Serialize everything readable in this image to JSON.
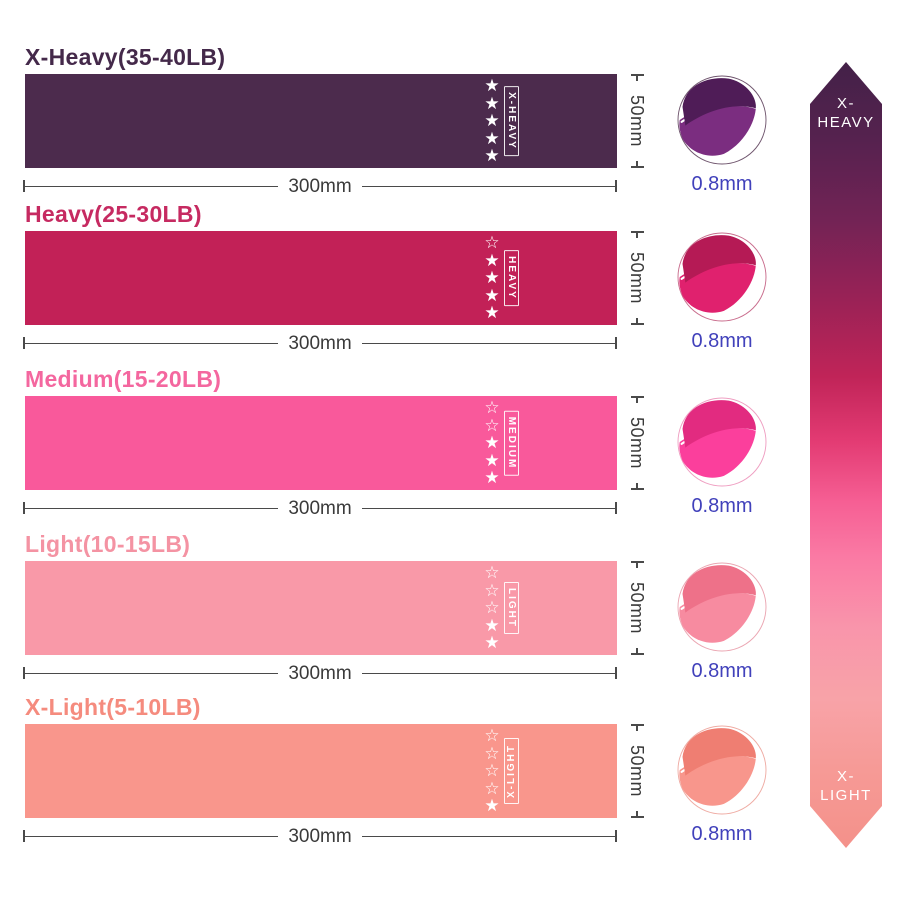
{
  "page_background": "#ffffff",
  "star_glyphs": {
    "filled": "★",
    "empty": "☆"
  },
  "dimension_text_color": "#3a3a3a",
  "thickness_text_color": "#4141bb",
  "bands": [
    {
      "title": "X-Heavy(35-40LB)",
      "label": "X-HEAVY",
      "stars_filled": 5,
      "stars_total": 5,
      "width": "300mm",
      "height": "50mm",
      "thickness": "0.8mm",
      "band_color": "#4c2b4d",
      "title_color": "#44294a",
      "circle_main": "#7b2d80",
      "circle_dark": "#4f1c57",
      "circle_ring": "#70566e",
      "label_reversed": false
    },
    {
      "title": "Heavy(25-30LB)",
      "label": "HEAVY",
      "stars_filled": 4,
      "stars_total": 5,
      "width": "300mm",
      "height": "50mm",
      "thickness": "0.8mm",
      "band_color": "#c22157",
      "title_color": "#c62a61",
      "circle_main": "#e0216e",
      "circle_dark": "#b51a55",
      "circle_ring": "#c96d8d",
      "label_reversed": false
    },
    {
      "title": "Medium(15-20LB)",
      "label": "MEDIUM",
      "stars_filled": 3,
      "stars_total": 5,
      "width": "300mm",
      "height": "50mm",
      "thickness": "0.8mm",
      "band_color": "#f9599b",
      "title_color": "#f4679f",
      "circle_main": "#fb3f9c",
      "circle_dark": "#e22b80",
      "circle_ring": "#ef9fc2",
      "label_reversed": false
    },
    {
      "title": "Light(10-15LB)",
      "label": "LIGHT",
      "stars_filled": 2,
      "stars_total": 5,
      "width": "300mm",
      "height": "50mm",
      "thickness": "0.8mm",
      "band_color": "#f999a8",
      "title_color": "#f493a3",
      "circle_main": "#f78ba0",
      "circle_dark": "#ee7189",
      "circle_ring": "#eba6b2",
      "label_reversed": false
    },
    {
      "title": "X-Light(5-10LB)",
      "label": "X-LIGHT",
      "stars_filled": 1,
      "stars_total": 5,
      "width": "300mm",
      "height": "50mm",
      "thickness": "0.8mm",
      "band_color": "#f9968c",
      "title_color": "#f58b7e",
      "circle_main": "#f8968c",
      "circle_dark": "#ef7e72",
      "circle_ring": "#efaca4",
      "label_reversed": true
    }
  ],
  "scale_arrow": {
    "top_line1": "X-",
    "top_line2": "HEAVY",
    "bottom_line1": "X-",
    "bottom_line2": "LIGHT",
    "gradient_stops": [
      {
        "offset": "0%",
        "color": "#432148"
      },
      {
        "offset": "10%",
        "color": "#56224f"
      },
      {
        "offset": "20%",
        "color": "#722355"
      },
      {
        "offset": "30%",
        "color": "#992256"
      },
      {
        "offset": "40%",
        "color": "#c02458"
      },
      {
        "offset": "48%",
        "color": "#e23a72"
      },
      {
        "offset": "56%",
        "color": "#f65f94"
      },
      {
        "offset": "63%",
        "color": "#fa7aa4"
      },
      {
        "offset": "72%",
        "color": "#f995ab"
      },
      {
        "offset": "81%",
        "color": "#f8a3a8"
      },
      {
        "offset": "90%",
        "color": "#f69a96"
      },
      {
        "offset": "100%",
        "color": "#f4918a"
      }
    ]
  }
}
